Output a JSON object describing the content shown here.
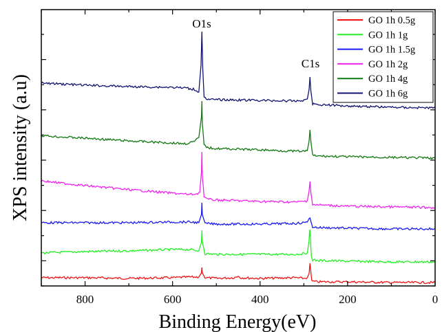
{
  "chart_data": {
    "type": "line",
    "xlabel": "Binding Energy(eV)",
    "ylabel": "XPS intensity (a.u)",
    "xlim": [
      900,
      0
    ],
    "x_reversed": true,
    "xticks": [
      800,
      600,
      400,
      200,
      0
    ],
    "y_tick_labels": false,
    "grid": false,
    "legend_position": "top-right",
    "annotations": [
      {
        "text": "O1s",
        "x": 533
      },
      {
        "text": "C1s",
        "x": 286
      }
    ],
    "series_colors": {
      "GO 1h 0.5g": "#ee1111",
      "GO 1h 1g": "#22ee22",
      "GO 1h 1.5g": "#1a1aee",
      "GO 1h 2g": "#ee22ee",
      "GO 1h 4g": "#117711",
      "GO 1h 6g": "#101070"
    },
    "series": [
      {
        "name": "GO 1h 0.5g",
        "color": "#ee1111",
        "x": [
          900,
          800,
          700,
          600,
          560,
          540,
          534,
          533,
          532,
          526,
          500,
          460,
          450,
          445,
          400,
          320,
          300,
          292,
          288,
          286,
          284,
          282,
          270,
          200,
          100,
          0
        ],
        "y": [
          404,
          404,
          405,
          404,
          403,
          403,
          397,
          389,
          397,
          404,
          405,
          404,
          402,
          404,
          405,
          404,
          405,
          404,
          398,
          383,
          395,
          409,
          410,
          410,
          411,
          411
        ]
      },
      {
        "name": "GO 1h 1g",
        "color": "#22ee22",
        "x": [
          900,
          800,
          700,
          600,
          560,
          540,
          534,
          533,
          532,
          526,
          500,
          400,
          320,
          300,
          292,
          288,
          287,
          286,
          285,
          283,
          280,
          270,
          200,
          100,
          0
        ],
        "y": [
          368,
          366,
          365,
          363,
          363,
          365,
          352,
          335,
          352,
          369,
          370,
          370,
          370,
          369,
          368,
          350,
          337,
          334,
          345,
          372,
          378,
          379,
          380,
          381,
          381
        ]
      },
      {
        "name": "GO 1h 1.5g",
        "color": "#1a1aee",
        "x": [
          900,
          800,
          700,
          600,
          560,
          540,
          534,
          533,
          532,
          526,
          500,
          400,
          320,
          300,
          292,
          288,
          286,
          284,
          280,
          270,
          200,
          100,
          0
        ],
        "y": [
          324,
          324,
          324,
          323,
          323,
          324,
          312,
          295,
          312,
          325,
          326,
          326,
          325,
          324,
          323,
          318,
          317,
          322,
          330,
          331,
          332,
          333,
          333
        ]
      },
      {
        "name": "GO 1h 2g",
        "color": "#ee22ee",
        "x": [
          900,
          860,
          800,
          700,
          600,
          560,
          545,
          538,
          534,
          533,
          532,
          528,
          520,
          500,
          400,
          320,
          300,
          292,
          288,
          286,
          284,
          280,
          270,
          200,
          100,
          0
        ],
        "y": [
          263,
          266,
          270,
          276,
          281,
          283,
          282,
          280,
          250,
          221,
          255,
          286,
          290,
          291,
          293,
          294,
          293,
          292,
          278,
          264,
          280,
          297,
          298,
          300,
          301,
          302
        ]
      },
      {
        "name": "GO 1h 4g",
        "color": "#117711",
        "x": [
          900,
          860,
          800,
          700,
          600,
          570,
          550,
          540,
          534,
          533,
          532,
          528,
          520,
          500,
          400,
          320,
          300,
          292,
          288,
          286,
          284,
          280,
          270,
          200,
          100,
          0
        ],
        "y": [
          197,
          199,
          201,
          205,
          208,
          209,
          206,
          200,
          170,
          147,
          180,
          210,
          215,
          216,
          218,
          220,
          220,
          219,
          205,
          189,
          205,
          226,
          227,
          228,
          229,
          230
        ]
      },
      {
        "name": "GO 1h 6g",
        "color": "#101070",
        "x": [
          900,
          860,
          800,
          700,
          600,
          570,
          550,
          540,
          535,
          533,
          531,
          528,
          520,
          500,
          400,
          320,
          300,
          292,
          288,
          286,
          284,
          280,
          270,
          200,
          100,
          0
        ],
        "y": [
          121,
          122,
          124,
          126,
          127,
          128,
          130,
          134,
          95,
          46,
          100,
          140,
          145,
          145,
          146,
          147,
          146,
          144,
          130,
          112,
          132,
          151,
          152,
          154,
          156,
          157
        ]
      }
    ]
  }
}
